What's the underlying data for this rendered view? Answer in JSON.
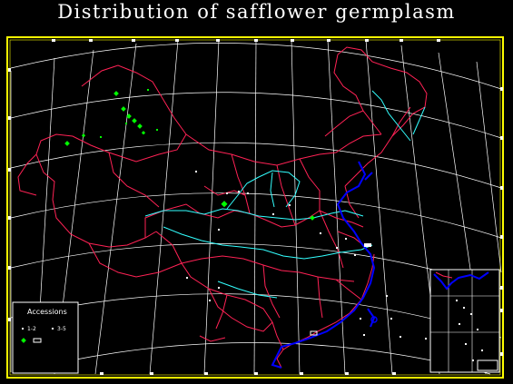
{
  "title": "Distribution of safflower germplasm",
  "legend": {
    "heading": "Accessions",
    "items": [
      {
        "label": "1-2",
        "color": "#ffffff",
        "symbol": "small-dot"
      },
      {
        "label": "3-5",
        "color": "#ffffff",
        "symbol": "small-diamond"
      },
      {
        "label": "",
        "color": "#00ff00",
        "symbol": "green-diamond"
      },
      {
        "label": "",
        "color": "#ffffff",
        "symbol": "box-marker"
      }
    ]
  },
  "colors": {
    "frame": "#ffff00",
    "graticule": "#ffffff",
    "province_borders": "#ff2255",
    "rivers": "#33ffff",
    "coastline": "#0000ff",
    "accession_points": "#00ff00"
  }
}
